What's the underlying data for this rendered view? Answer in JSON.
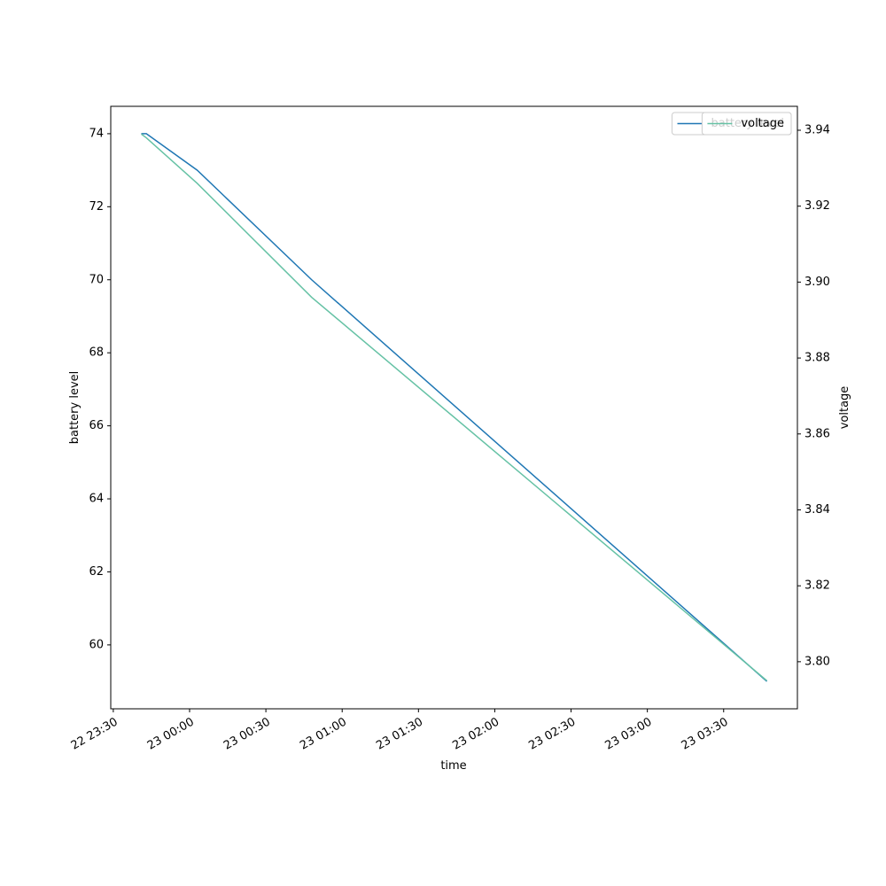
{
  "chart_data": {
    "type": "line",
    "x_label": "time",
    "y_label": "battery level",
    "y2_label": "voltage",
    "x": [
      "22 23:41",
      "22 23:43",
      "23 00:03",
      "23 00:48",
      "23 03:47"
    ],
    "xlim": [
      "22 23:29",
      "23 03:59"
    ],
    "xticks": [
      "22 23:30",
      "23 00:00",
      "23 00:30",
      "23 01:00",
      "23 01:30",
      "23 02:00",
      "23 02:30",
      "23 03:00",
      "23 03:30"
    ],
    "series": [
      {
        "name": "battery level",
        "color": "#1f77b4",
        "values": [
          74,
          74,
          73,
          70,
          59
        ]
      },
      {
        "name": "voltage",
        "color": "#66c2a5",
        "axis": "y2",
        "values": [
          3.939,
          3.938,
          3.926,
          3.896,
          3.795
        ]
      }
    ],
    "ylim": [
      58.25,
      74.75
    ],
    "yticks": [
      60,
      62,
      64,
      66,
      68,
      70,
      72,
      74
    ],
    "y2lim": [
      3.7876,
      3.9463
    ],
    "y2ticks": [
      {
        "value": 3.8,
        "label": "3.80"
      },
      {
        "value": 3.82,
        "label": "3.82"
      },
      {
        "value": 3.84,
        "label": "3.84"
      },
      {
        "value": 3.86,
        "label": "3.86"
      },
      {
        "value": 3.88,
        "label": "3.88"
      },
      {
        "value": 3.9,
        "label": "3.90"
      },
      {
        "value": 3.92,
        "label": "3.92"
      },
      {
        "value": 3.94,
        "label": "3.94"
      }
    ],
    "legend": "upper right"
  }
}
